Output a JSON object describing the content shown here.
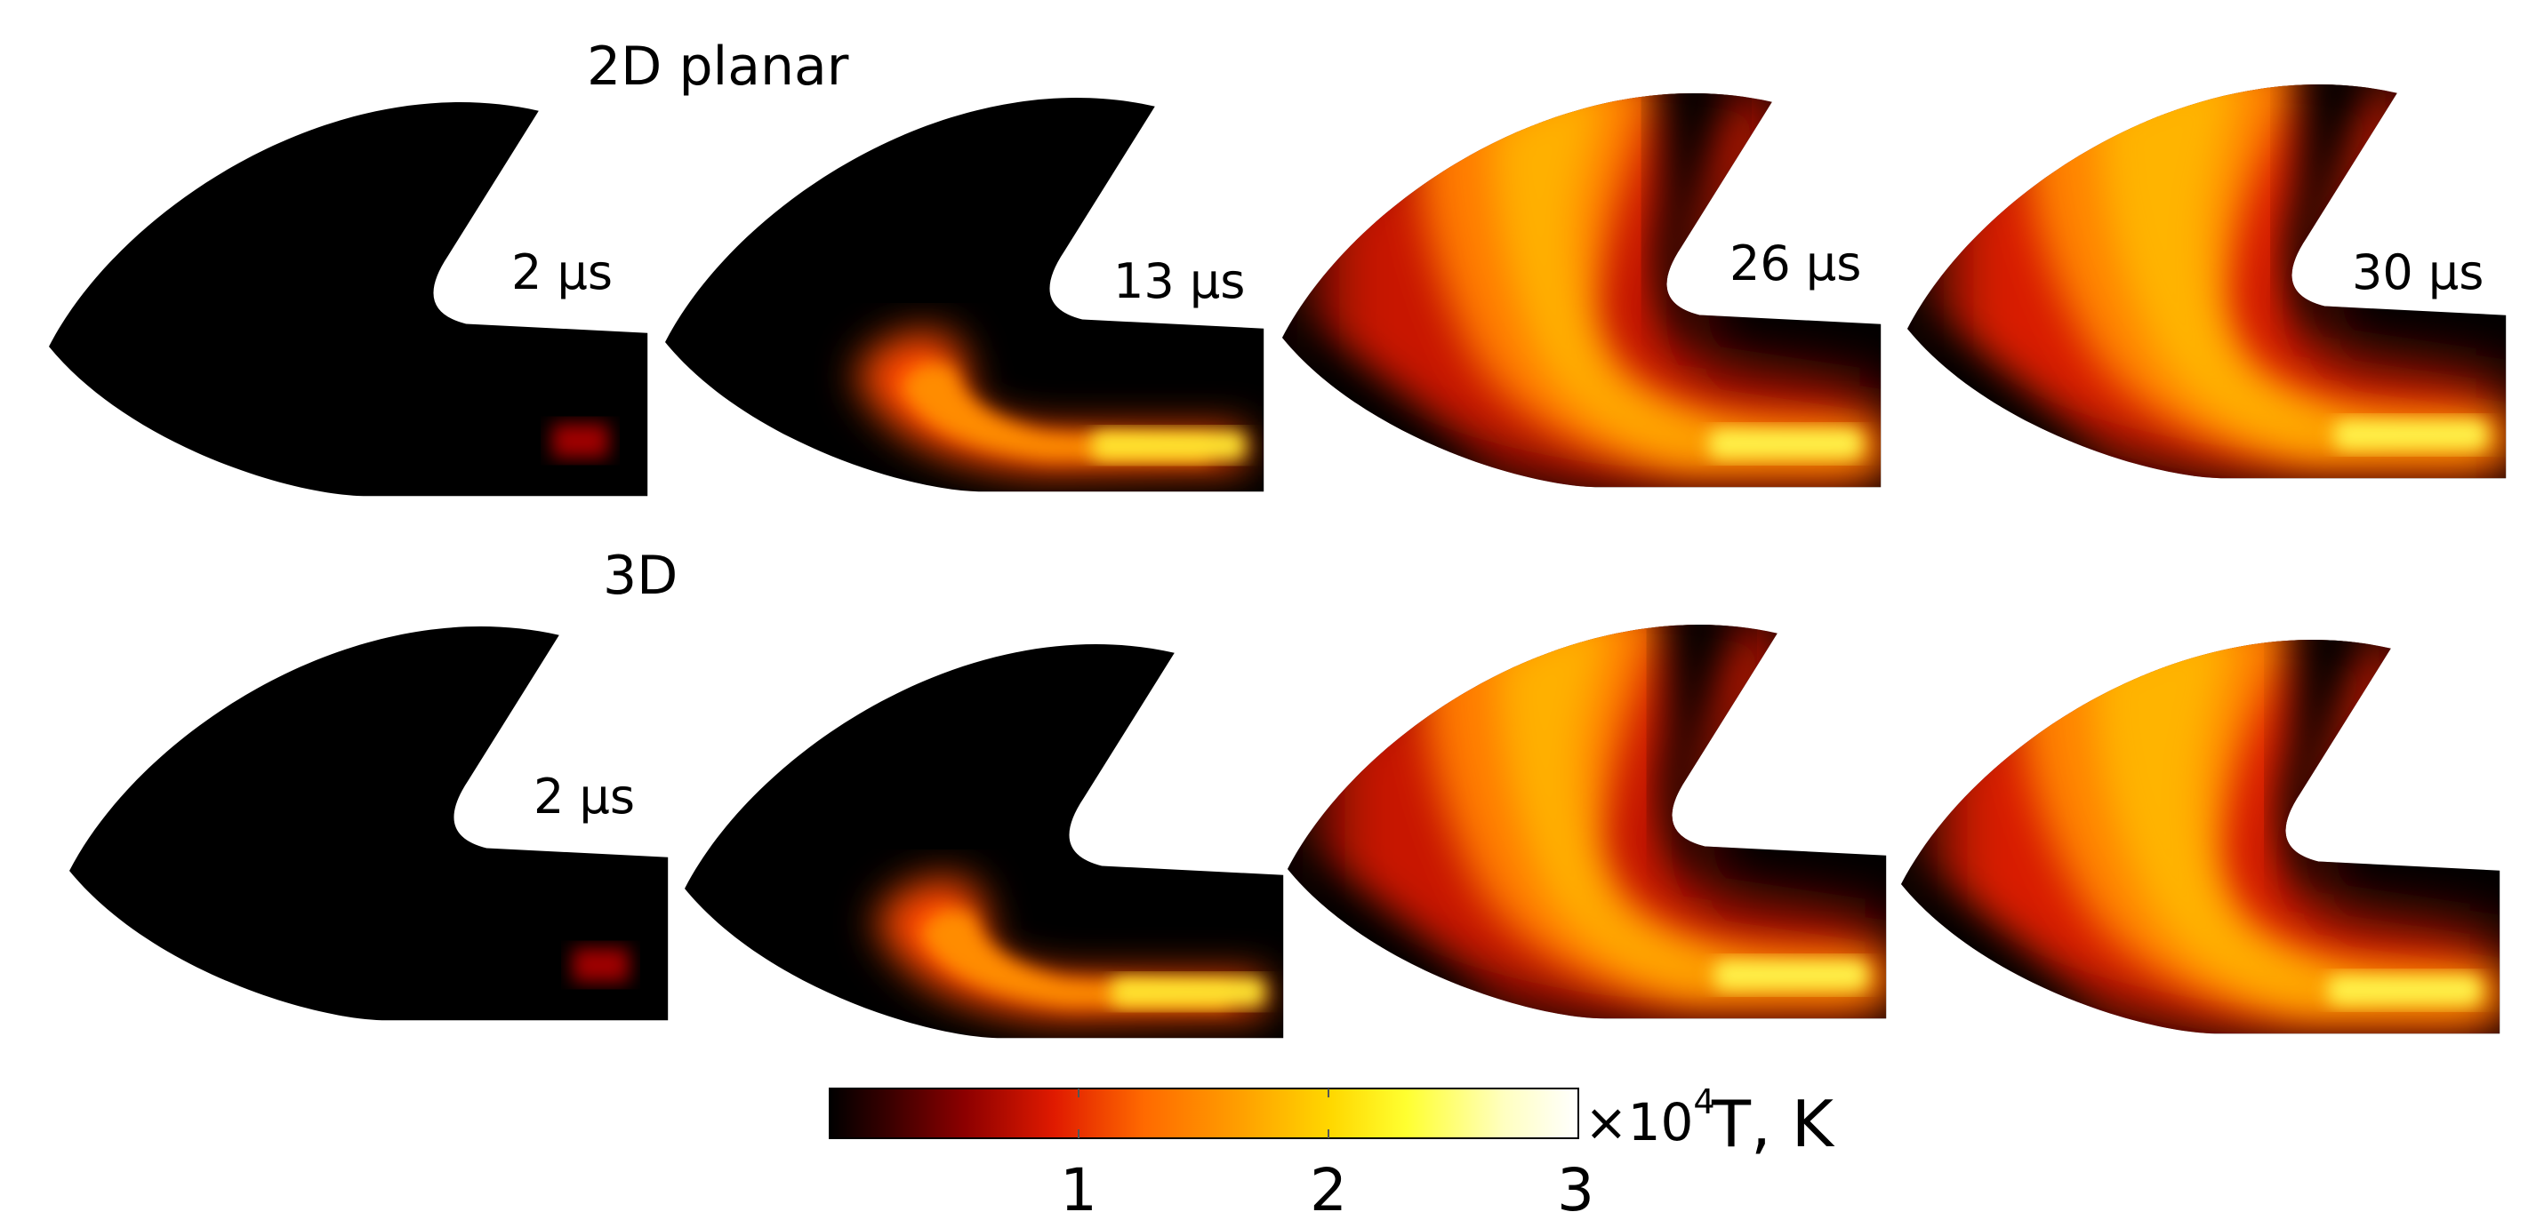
{
  "rows": [
    {
      "title": "2D planar",
      "panels": [
        {
          "time_label": "2 μs",
          "state": "0"
        },
        {
          "time_label": "13 μs",
          "state": "1"
        },
        {
          "time_label": "26 μs",
          "state": "2"
        },
        {
          "time_label": "30 μs",
          "state": "3"
        }
      ]
    },
    {
      "title": "3D",
      "panels": [
        {
          "time_label": "2 μs",
          "state": "0"
        },
        {
          "time_label": "",
          "state": "1"
        },
        {
          "time_label": "",
          "state": "2"
        },
        {
          "time_label": "",
          "state": "3"
        }
      ]
    }
  ],
  "colorbar": {
    "ticks": [
      "1",
      "2",
      "3"
    ],
    "tick_values": [
      1,
      2,
      3
    ],
    "range": [
      0,
      3
    ],
    "multiplier": "×10",
    "exponent": "4",
    "label": "T, K",
    "colormap": [
      "#000000",
      "#3a0000",
      "#8c0000",
      "#e01a00",
      "#ff6a00",
      "#ffa000",
      "#ffd800",
      "#ffff30",
      "#ffffc0",
      "#ffffff"
    ]
  }
}
